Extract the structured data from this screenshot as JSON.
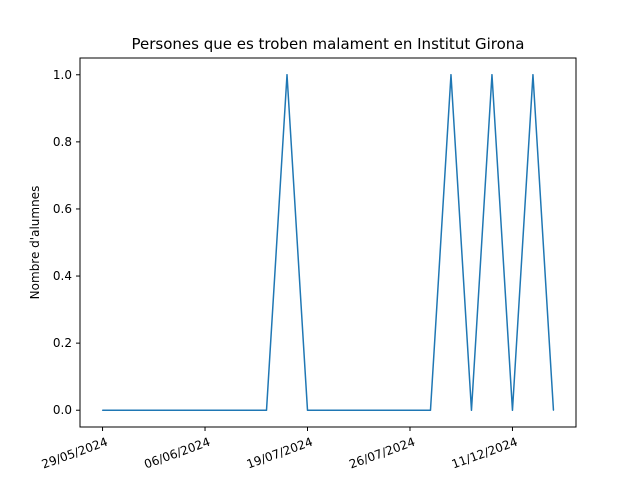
{
  "chart_data": {
    "type": "line",
    "title": "Persones que es troben malament en Institut Girona",
    "xlabel": "",
    "ylabel": "Nombre d'alumnes",
    "ylim": [
      -0.05,
      1.05
    ],
    "yticks": [
      0.0,
      0.2,
      0.4,
      0.6,
      0.8,
      1.0
    ],
    "ytick_labels": [
      "0.0",
      "0.2",
      "0.4",
      "0.6",
      "0.8",
      "1.0"
    ],
    "x_tick_labels": [
      "29/05/2024",
      "06/06/2024",
      "19/07/2024",
      "26/07/2024",
      "11/12/2024"
    ],
    "x_tick_positions": [
      0,
      5,
      10,
      15,
      20
    ],
    "x_tick_rotation": "20 degrees",
    "grid": false,
    "line_color": "#1f77b4",
    "series": [
      {
        "x": [
          0,
          1,
          2,
          3,
          4,
          5,
          6,
          7,
          8,
          9,
          10,
          11,
          12,
          13,
          14,
          15,
          16,
          17,
          18,
          19,
          20,
          21,
          22
        ],
        "values": [
          0,
          0,
          0,
          0,
          0,
          0,
          0,
          0,
          0,
          1,
          0,
          0,
          0,
          0,
          0,
          0,
          0,
          1,
          0,
          1,
          0,
          1,
          0
        ]
      }
    ]
  }
}
